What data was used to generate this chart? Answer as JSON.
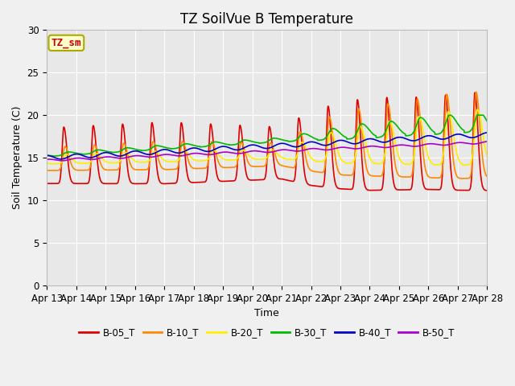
{
  "title": "TZ SoilVue B Temperature",
  "xlabel": "Time",
  "ylabel": "Soil Temperature (C)",
  "ylim": [
    0,
    30
  ],
  "annotation": "TZ_sm",
  "bg_color": "#e8e8e8",
  "fig_color": "#f0f0f0",
  "x_tick_labels": [
    "Apr 13",
    "Apr 14",
    "Apr 15",
    "Apr 16",
    "Apr 17",
    "Apr 18",
    "Apr 19",
    "Apr 20",
    "Apr 21",
    "Apr 22",
    "Apr 23",
    "Apr 24",
    "Apr 25",
    "Apr 26",
    "Apr 27",
    "Apr 28"
  ],
  "series_colors": {
    "B-05_T": "#dd0000",
    "B-10_T": "#ff8800",
    "B-20_T": "#ffee00",
    "B-30_T": "#00bb00",
    "B-40_T": "#0000cc",
    "B-50_T": "#aa00cc"
  },
  "yticks": [
    0,
    5,
    10,
    15,
    20,
    25,
    30
  ],
  "grid_color": "#ffffff",
  "title_fontsize": 12,
  "axis_fontsize": 9,
  "tick_fontsize": 8.5,
  "lw": 1.2
}
